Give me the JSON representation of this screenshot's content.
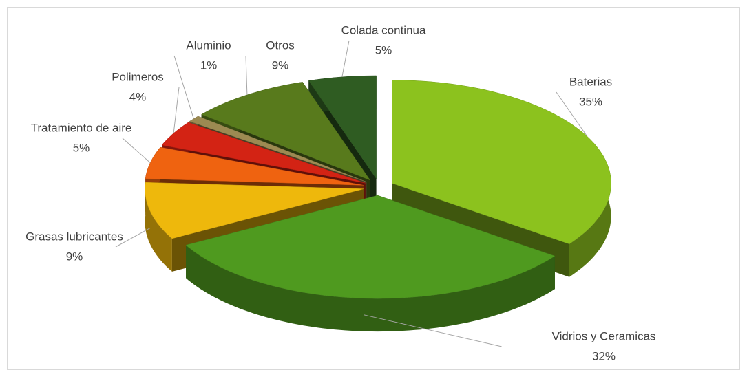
{
  "chart_data": {
    "type": "pie3d",
    "categories": [
      "Baterias",
      "Vidrios y Ceramicas",
      "Grasas lubricantes",
      "Tratamiento de aire",
      "Polimeros",
      "Aluminio",
      "Otros",
      "Colada continua"
    ],
    "values": [
      35,
      32,
      9,
      5,
      4,
      1,
      9,
      5
    ],
    "value_labels": [
      "35%",
      "32%",
      "9%",
      "5%",
      "4%",
      "1%",
      "9%",
      "5%"
    ],
    "colors": [
      "#8cc21e",
      "#4f9a1f",
      "#eeb80c",
      "#ef6310",
      "#d32314",
      "#9c8a52",
      "#587a1c",
      "#2f5c22"
    ]
  }
}
